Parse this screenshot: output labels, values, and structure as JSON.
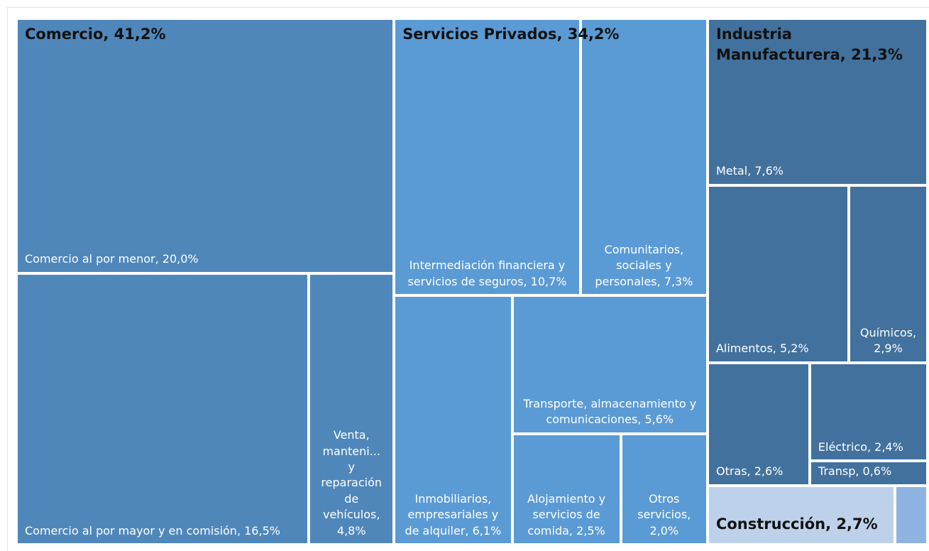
{
  "chart_data": {
    "type": "treemap",
    "groups": [
      {
        "label": "Comercio, 41,2%",
        "value": 41.2,
        "color": "#4f87bb",
        "children": [
          {
            "label": "Comercio al por menor, 20,0%",
            "value": 20.0
          },
          {
            "label": "Comercio al por mayor y en comisión, 16,5%",
            "value": 16.5
          },
          {
            "label": "Venta, manteni... y reparación de vehículos, 4,8%",
            "value": 4.8
          }
        ]
      },
      {
        "label": "Servicios Privados, 34,2%",
        "value": 34.2,
        "color": "#5b9bd5",
        "children": [
          {
            "label": "Intermediación financiera y servicios de seguros, 10,7%",
            "value": 10.7
          },
          {
            "label": "Comunitarios, sociales y personales, 7,3%",
            "value": 7.3
          },
          {
            "label": "Inmobiliarios, empresariales y de alquiler, 6,1%",
            "value": 6.1
          },
          {
            "label": "Transporte, almacenamiento y comunicaciones, 5,6%",
            "value": 5.6
          },
          {
            "label": "Alojamiento y servicios de comida, 2,5%",
            "value": 2.5
          },
          {
            "label": "Otros servicios, 2,0%",
            "value": 2.0
          }
        ]
      },
      {
        "label": "Industria Manufacturera, 21,3%",
        "value": 21.3,
        "color": "#42719d",
        "children": [
          {
            "label": "Metal, 7,6%",
            "value": 7.6
          },
          {
            "label": "Alimentos, 5,2%",
            "value": 5.2
          },
          {
            "label": "Químicos, 2,9%",
            "value": 2.9
          },
          {
            "label": "Otras, 2,6%",
            "value": 2.6
          },
          {
            "label": "Eléctrico, 2,4%",
            "value": 2.4
          },
          {
            "label": "Transp, 0,6%",
            "value": 0.6
          }
        ]
      },
      {
        "label": "Construcción, 2,7%",
        "value": 2.7,
        "color": "#bdd1ea",
        "children": [
          {
            "label": null,
            "value": 2.3,
            "color": "#bdd1ea"
          },
          {
            "label": null,
            "value": 0.4,
            "color": "#8fb3e0"
          }
        ]
      }
    ]
  }
}
